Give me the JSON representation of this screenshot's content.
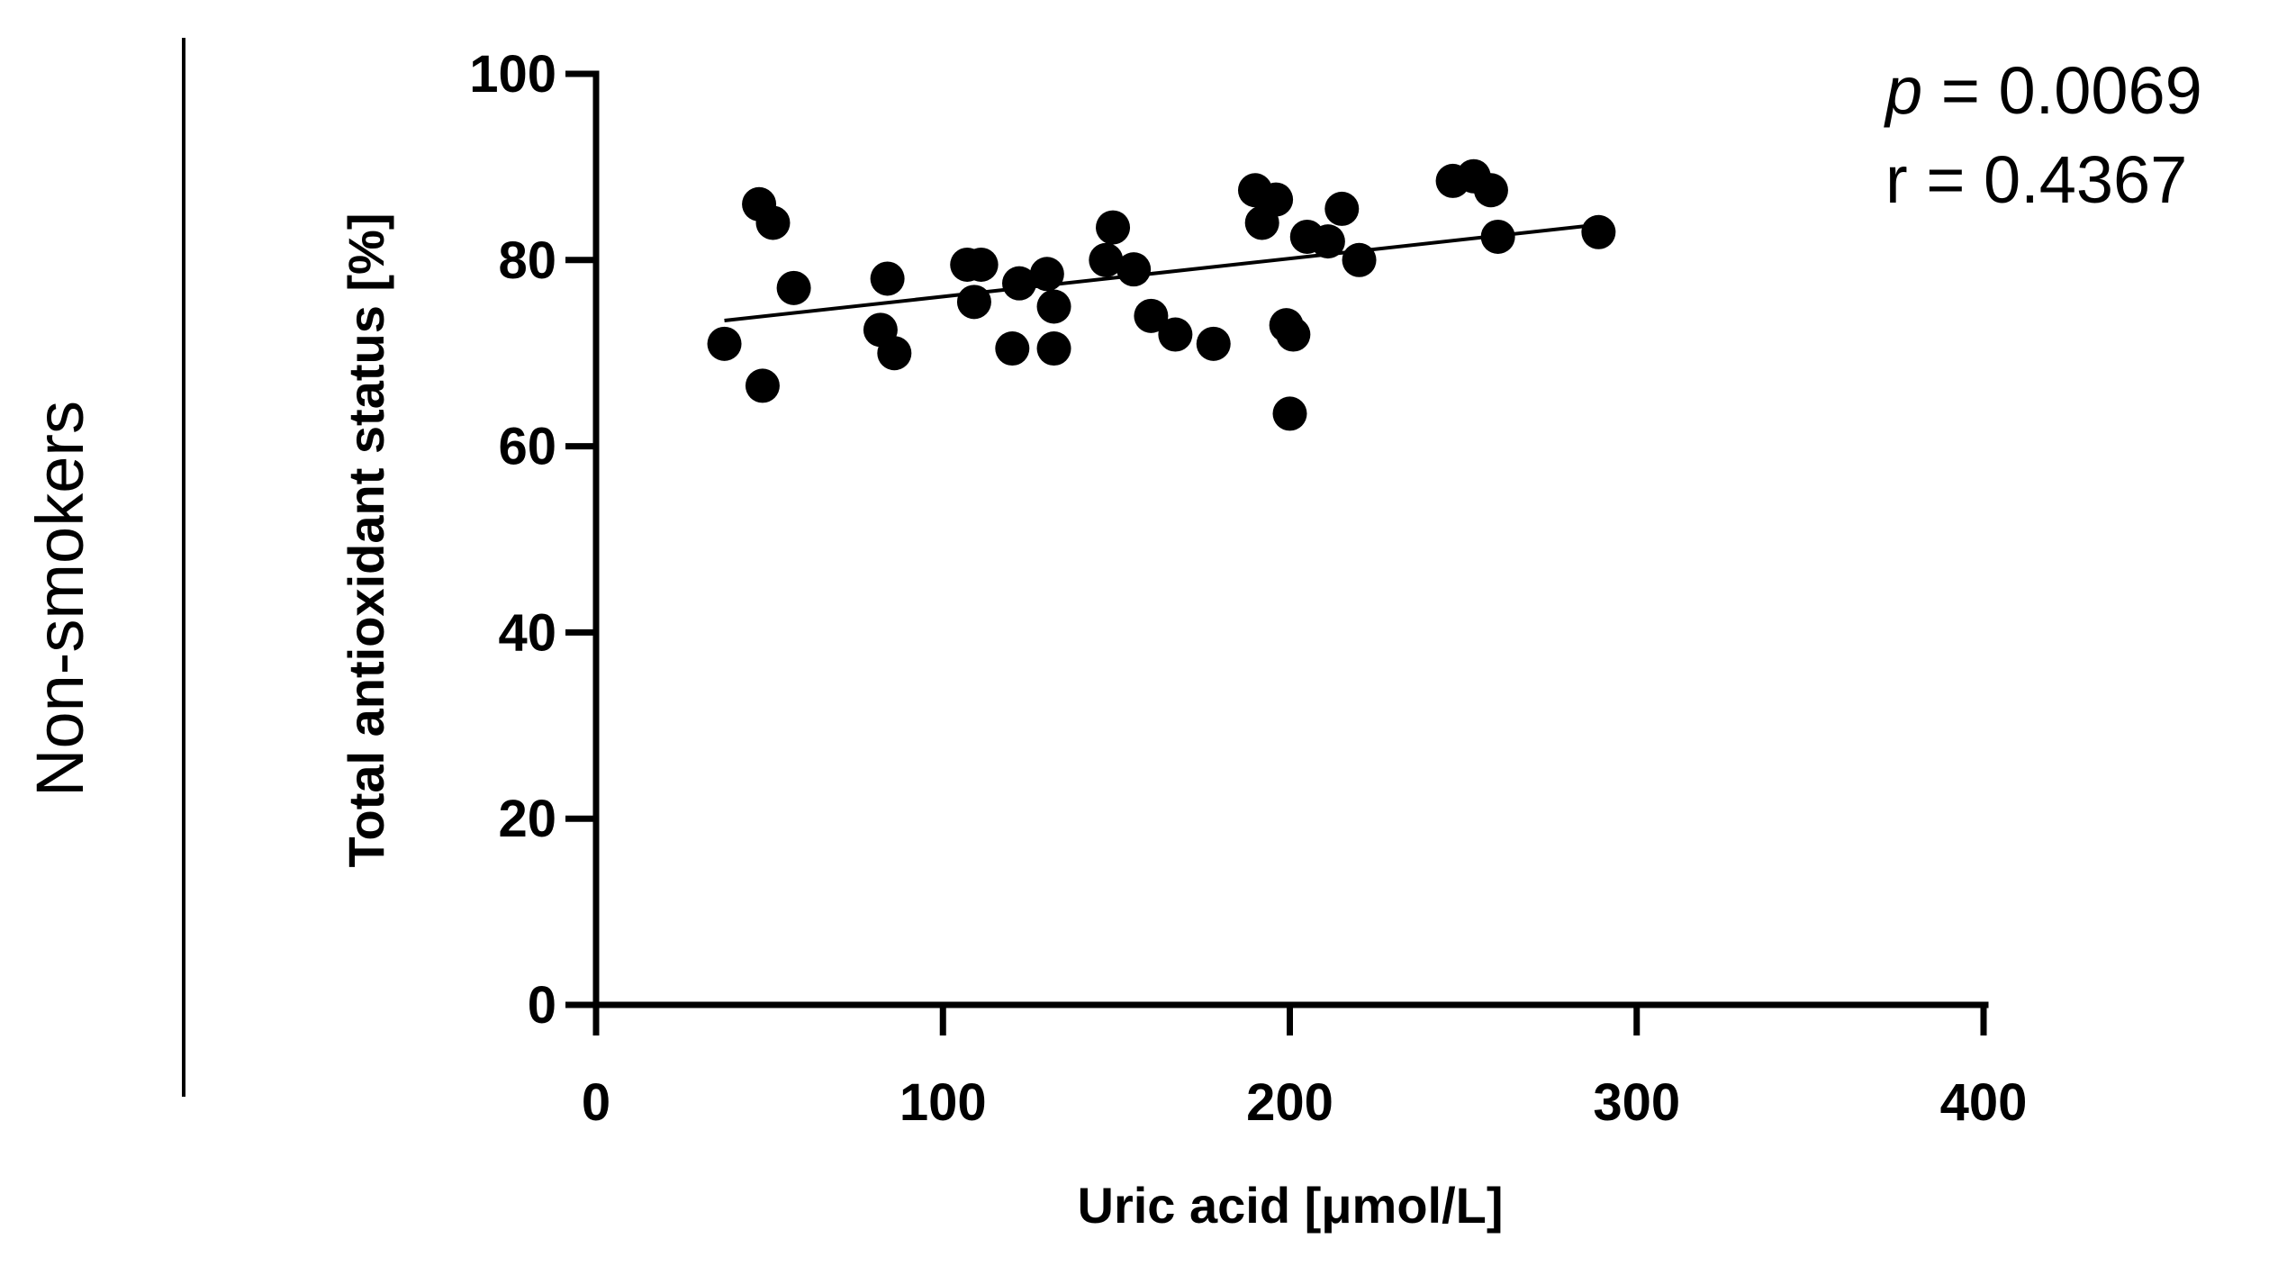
{
  "group_label": "Non-smokers",
  "stats": {
    "p_symbol": "p",
    "p_text": " = 0.0069",
    "r_text": "r = 0.4367"
  },
  "chart_data": {
    "type": "scatter",
    "xlabel": "Uric acid [μmol/L]",
    "ylabel": "Total antioxidant status [%]",
    "xlim": [
      0,
      400
    ],
    "ylim": [
      0,
      100
    ],
    "xticks": [
      0,
      100,
      200,
      300,
      400
    ],
    "yticks": [
      0,
      20,
      40,
      60,
      80,
      100
    ],
    "grid": false,
    "points": [
      {
        "x": 37,
        "y": 71
      },
      {
        "x": 47,
        "y": 86
      },
      {
        "x": 48,
        "y": 66.5
      },
      {
        "x": 51,
        "y": 84
      },
      {
        "x": 57,
        "y": 77
      },
      {
        "x": 82,
        "y": 72.5
      },
      {
        "x": 84,
        "y": 78
      },
      {
        "x": 86,
        "y": 70
      },
      {
        "x": 107,
        "y": 79.5
      },
      {
        "x": 109,
        "y": 75.5
      },
      {
        "x": 111,
        "y": 79.5
      },
      {
        "x": 120,
        "y": 70.5
      },
      {
        "x": 122,
        "y": 77.5
      },
      {
        "x": 130,
        "y": 78.5
      },
      {
        "x": 132,
        "y": 75
      },
      {
        "x": 132,
        "y": 70.5
      },
      {
        "x": 147,
        "y": 80
      },
      {
        "x": 149,
        "y": 83.5
      },
      {
        "x": 155,
        "y": 79
      },
      {
        "x": 160,
        "y": 74
      },
      {
        "x": 167,
        "y": 72
      },
      {
        "x": 178,
        "y": 71
      },
      {
        "x": 190,
        "y": 87.5
      },
      {
        "x": 192,
        "y": 84
      },
      {
        "x": 196,
        "y": 86.5
      },
      {
        "x": 199,
        "y": 73
      },
      {
        "x": 200,
        "y": 63.5
      },
      {
        "x": 201,
        "y": 72
      },
      {
        "x": 205,
        "y": 82.5
      },
      {
        "x": 211,
        "y": 82
      },
      {
        "x": 215,
        "y": 85.5
      },
      {
        "x": 220,
        "y": 80
      },
      {
        "x": 247,
        "y": 88.5
      },
      {
        "x": 253,
        "y": 89
      },
      {
        "x": 258,
        "y": 87.5
      },
      {
        "x": 260,
        "y": 82.5
      },
      {
        "x": 289,
        "y": 83
      }
    ],
    "fit_line": {
      "x": [
        37,
        289
      ],
      "y": [
        73.5,
        83.8
      ]
    }
  }
}
